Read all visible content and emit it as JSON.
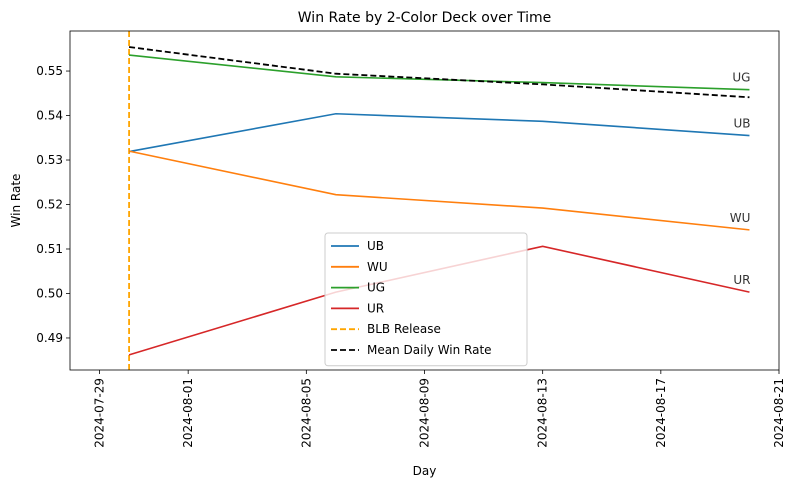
{
  "chart_data": {
    "type": "line",
    "title": "Win Rate by 2-Color Deck over Time",
    "xlabel": "Day",
    "ylabel": "Win Rate",
    "x_ticks": [
      "2024-07-29",
      "2024-08-01",
      "2024-08-05",
      "2024-08-09",
      "2024-08-13",
      "2024-08-17",
      "2024-08-21"
    ],
    "y_ticks": [
      "0.49",
      "0.50",
      "0.51",
      "0.52",
      "0.53",
      "0.54",
      "0.55"
    ],
    "xlim": [
      "2024-07-28",
      "2024-08-21"
    ],
    "ylim": [
      0.4828,
      0.559
    ],
    "x": [
      "2024-07-30",
      "2024-08-06",
      "2024-08-13",
      "2024-08-20"
    ],
    "series": [
      {
        "name": "UB",
        "values": [
          0.5319,
          0.5404,
          0.5387,
          0.5355
        ],
        "color": "#1f77b4",
        "end_label": "UB"
      },
      {
        "name": "WU",
        "values": [
          0.532,
          0.5222,
          0.5192,
          0.5143
        ],
        "color": "#ff7f0e",
        "end_label": "WU"
      },
      {
        "name": "UG",
        "values": [
          0.5536,
          0.5487,
          0.5474,
          0.5458
        ],
        "color": "#2ca02c",
        "end_label": "UG"
      },
      {
        "name": "UR",
        "values": [
          0.4862,
          0.5003,
          0.5106,
          0.5003
        ],
        "color": "#d62728",
        "end_label": "UR"
      },
      {
        "name": "Mean Daily Win Rate",
        "values": [
          0.5554,
          0.5494,
          0.547,
          0.5441
        ],
        "color": "#000000",
        "dashed": true
      }
    ],
    "vline": {
      "name": "BLB Release",
      "x": "2024-07-30",
      "color": "#ffa500",
      "dashed": true
    },
    "legend_order": [
      "UB",
      "WU",
      "UG",
      "UR",
      "BLB Release",
      "Mean Daily Win Rate"
    ],
    "legend_position": "lower-center",
    "grid": false
  }
}
